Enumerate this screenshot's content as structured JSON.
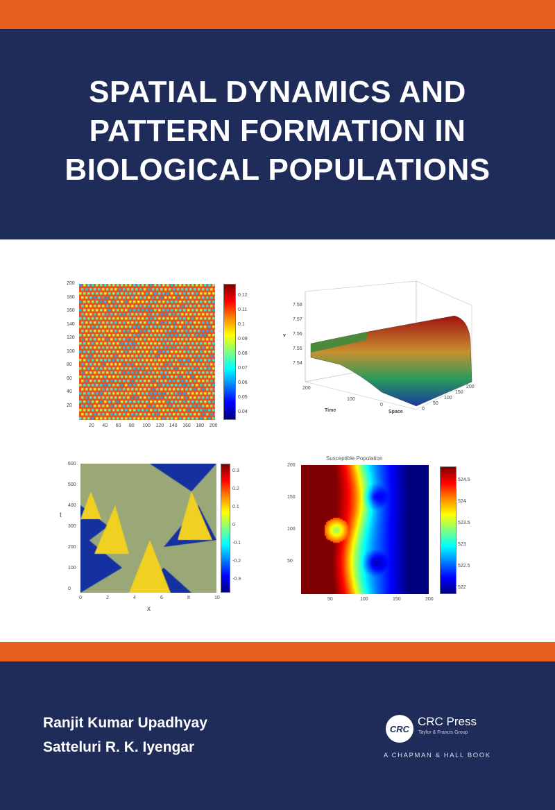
{
  "cover": {
    "title_lines": [
      "SPATIAL DYNAMICS AND",
      "PATTERN FORMATION IN",
      "BIOLOGICAL POPULATIONS"
    ],
    "authors": [
      "Ranjit Kumar Upadhyay",
      "Satteluri R. K. Iyengar"
    ],
    "publisher": {
      "name": "CRC Press",
      "group": "Taylor & Francis Group",
      "imprint": "A CHAPMAN & HALL BOOK",
      "logo_text": "CRC"
    },
    "colors": {
      "orange": "#e5601f",
      "navy": "#1f2b58"
    }
  },
  "figures": {
    "fig1": {
      "y_ticks": [
        "200",
        "180",
        "160",
        "140",
        "120",
        "100",
        "80",
        "60",
        "40",
        "20"
      ],
      "x_ticks": [
        "20",
        "40",
        "60",
        "80",
        "100",
        "120",
        "140",
        "160",
        "180",
        "200"
      ],
      "colorbar_ticks": [
        "0.12",
        "0.11",
        "0.1",
        "0.09",
        "0.08",
        "0.07",
        "0.06",
        "0.05",
        "0.04"
      ]
    },
    "fig2": {
      "z_ticks": [
        "7.58",
        "7.57",
        "7.56",
        "7.55",
        "7.54"
      ],
      "xlabel": "Space",
      "ylabel": "Time",
      "zlabel": "v",
      "x_ticks": [
        "0",
        "50",
        "100",
        "150",
        "200"
      ],
      "y_ticks": [
        "200",
        "100",
        "0"
      ]
    },
    "fig3": {
      "y_ticks": [
        "600",
        "500",
        "400",
        "300",
        "200",
        "100",
        "0"
      ],
      "x_ticks": [
        "0",
        "2",
        "4",
        "6",
        "8",
        "10"
      ],
      "xlabel": "x",
      "ylabel": "t",
      "colorbar_ticks": [
        "0.3",
        "0.2",
        "0.1",
        "0",
        "-0.1",
        "-0.2",
        "-0.3"
      ]
    },
    "fig4": {
      "title": "Susceptible Population",
      "y_ticks": [
        "200",
        "150",
        "100",
        "50"
      ],
      "x_ticks": [
        "50",
        "100",
        "150",
        "200"
      ],
      "colorbar_ticks": [
        "524.5",
        "524",
        "523.5",
        "523",
        "522.5",
        "522"
      ]
    }
  }
}
